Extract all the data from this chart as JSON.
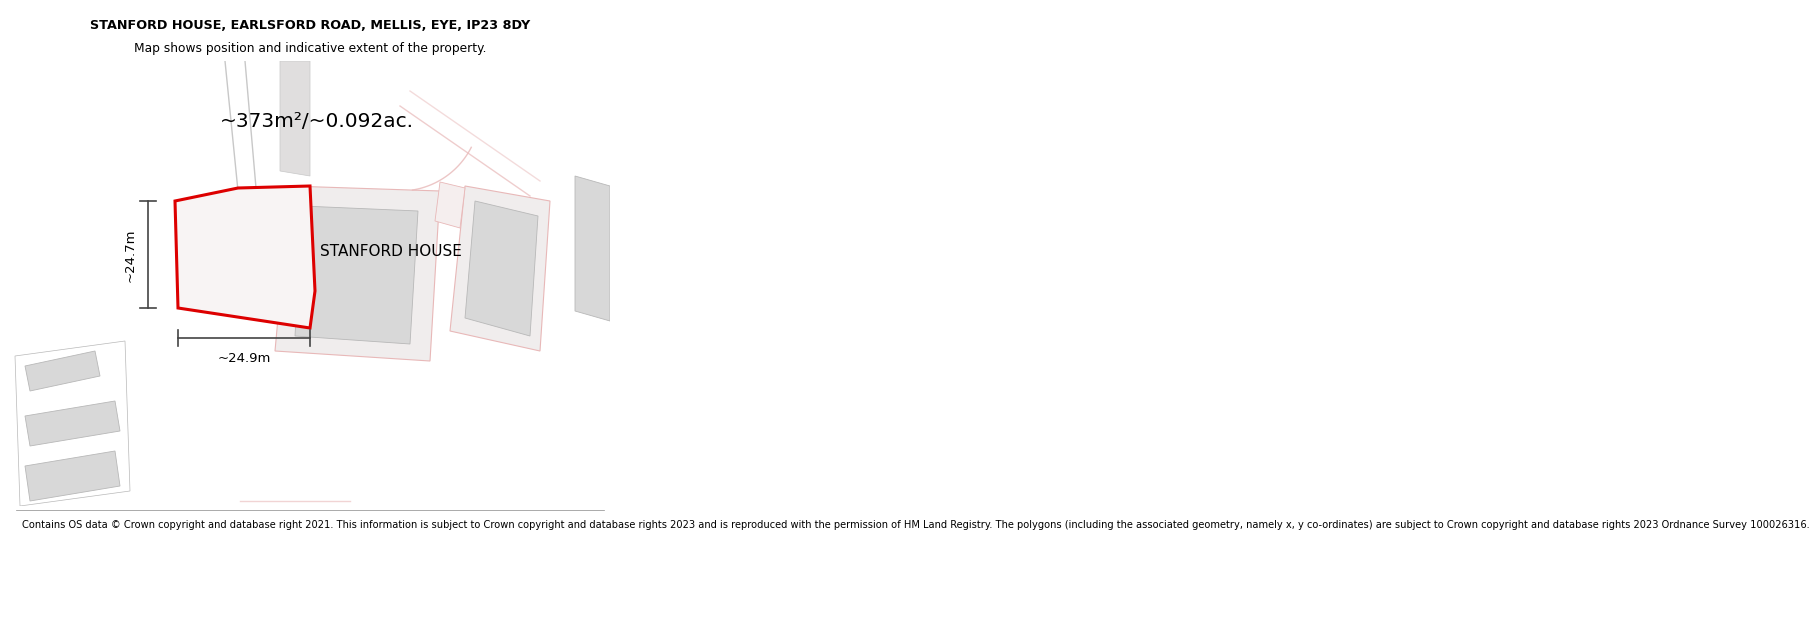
{
  "title_line1": "STANFORD HOUSE, EARLSFORD ROAD, MELLIS, EYE, IP23 8DY",
  "title_line2": "Map shows position and indicative extent of the property.",
  "property_label": "STANFORD HOUSE",
  "area_label": "~373m²/~0.092ac.",
  "dim_left": "~24.7m",
  "dim_bottom": "~24.9m",
  "copyright_text": "Contains OS data © Crown copyright and database right 2021. This information is subject to Crown copyright and database rights 2023 and is reproduced with the permission of HM Land Registry. The polygons (including the associated geometry, namely x, y co-ordinates) are subject to Crown copyright and database rights 2023 Ordnance Survey 100026316.",
  "map_bg": "#f8f7f5",
  "plot_edge_color": "#dd0000",
  "dim_line_color": "#444444",
  "building_fill": "#d8d8d8",
  "building_edge": "#b8b8b8",
  "road_outline_color": "#e8b8b8",
  "road_gray_color": "#c8c8c8"
}
